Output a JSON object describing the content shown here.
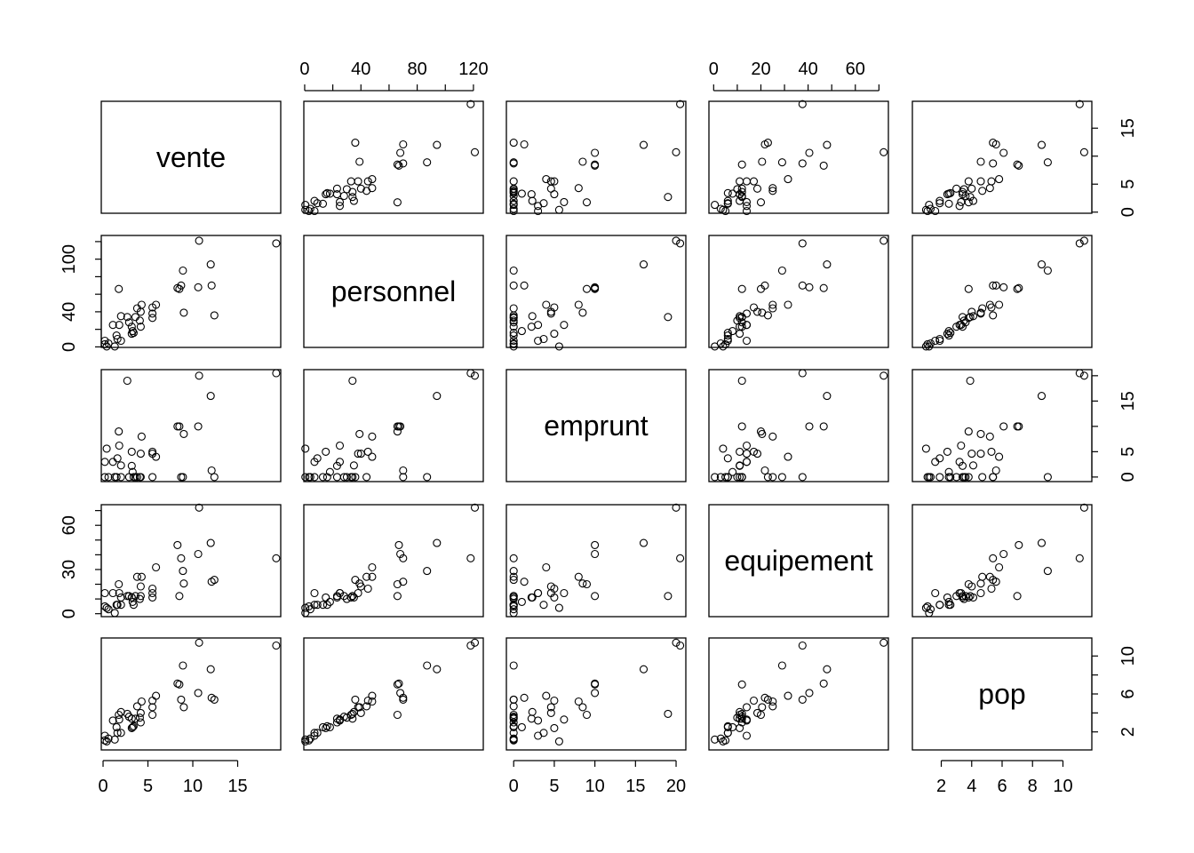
{
  "chart_data": {
    "type": "scatter-matrix",
    "variables": [
      "vente",
      "personnel",
      "emprunt",
      "equipement",
      "pop"
    ],
    "ranges": {
      "vente": [
        -0.2,
        19.8
      ],
      "personnel": [
        -0.6,
        127
      ],
      "emprunt": [
        -0.9,
        21.2
      ],
      "equipement": [
        -2,
        74
      ],
      "pop": [
        0.1,
        11.9
      ]
    },
    "ticks": {
      "vente": {
        "ticks": [
          0,
          5,
          10,
          15
        ],
        "labels_bottom": [
          "0",
          "5",
          "10",
          "15"
        ],
        "labels_right": [
          "0",
          "5",
          "",
          "15"
        ]
      },
      "personnel": {
        "ticks": [
          0,
          20,
          40,
          60,
          80,
          100,
          120
        ],
        "labels_top": [
          "0",
          "",
          "40",
          "",
          "80",
          "",
          "120"
        ],
        "labels_left": [
          "0",
          "",
          "40",
          "",
          "",
          "100",
          ""
        ]
      },
      "emprunt": {
        "ticks": [
          0,
          5,
          10,
          15,
          20
        ],
        "labels_bottom": [
          "0",
          "5",
          "10",
          "15",
          "20"
        ],
        "labels_right": [
          "0",
          "5",
          "",
          "15",
          ""
        ]
      },
      "equipement": {
        "ticks": [
          0,
          10,
          20,
          30,
          40,
          50,
          60,
          70
        ],
        "labels_top": [
          "0",
          "",
          "20",
          "",
          "40",
          "",
          "60",
          ""
        ],
        "labels_left": [
          "0",
          "",
          "",
          "30",
          "",
          "",
          "60",
          ""
        ]
      },
      "pop": {
        "ticks": [
          2,
          4,
          6,
          8,
          10
        ],
        "labels_bottom": [
          "2",
          "4",
          "6",
          "8",
          "10"
        ],
        "labels_right": [
          "2",
          "",
          "6",
          "",
          "10"
        ]
      }
    },
    "observations": [
      [
        19.3,
        118,
        20.5,
        37.6,
        11.1
      ],
      [
        10.7,
        121,
        20,
        72,
        11.4
      ],
      [
        12.0,
        94,
        16,
        48,
        8.6
      ],
      [
        8.9,
        87,
        0,
        29,
        9.0
      ],
      [
        1.75,
        66,
        9,
        20,
        3.8
      ],
      [
        8.3,
        67,
        10,
        46.6,
        7.1
      ],
      [
        8.5,
        66,
        10,
        12,
        7.0
      ],
      [
        8.7,
        70,
        0,
        37.6,
        5.4
      ],
      [
        10.6,
        68,
        10,
        40.5,
        6.1
      ],
      [
        12.1,
        70,
        1.3,
        21.7,
        5.6
      ],
      [
        5.9,
        48,
        4,
        31.5,
        5.8
      ],
      [
        5.5,
        45,
        5,
        17,
        5.3
      ],
      [
        4.3,
        48,
        8,
        25,
        5.2
      ],
      [
        3.8,
        44,
        0,
        25,
        4.7
      ],
      [
        4.2,
        40,
        4.6,
        18.5,
        4.0
      ],
      [
        5.5,
        38,
        4.6,
        14,
        4.6
      ],
      [
        5.5,
        33,
        0,
        11,
        3.8
      ],
      [
        9.0,
        39,
        8.5,
        20.5,
        4.6
      ],
      [
        12.4,
        36,
        0,
        23,
        5.4
      ],
      [
        2.0,
        35,
        2.3,
        11,
        4.1
      ],
      [
        2.7,
        34,
        19,
        12,
        3.9
      ],
      [
        3.6,
        34,
        0,
        12,
        3.4
      ],
      [
        1.1,
        25,
        3,
        14,
        3.2
      ],
      [
        1.8,
        25,
        6.2,
        14,
        3.3
      ],
      [
        3.2,
        23,
        2.2,
        11,
        3.4
      ],
      [
        4.2,
        23,
        0,
        12,
        3.0
      ],
      [
        3.3,
        18,
        1,
        8,
        2.5
      ],
      [
        3.4,
        16,
        0,
        6,
        2.6
      ],
      [
        3.2,
        15,
        5,
        11,
        2.4
      ],
      [
        1.5,
        13,
        0,
        6,
        2.5
      ],
      [
        1.6,
        9,
        3.7,
        6,
        1.9
      ],
      [
        2.0,
        7,
        0,
        6,
        1.9
      ],
      [
        0.2,
        7,
        3,
        14,
        1.6
      ],
      [
        0.2,
        3,
        0,
        5,
        1.1
      ],
      [
        0.4,
        0.5,
        5.6,
        4,
        1.0
      ],
      [
        1.3,
        0.5,
        0,
        0.5,
        1.2
      ],
      [
        2.9,
        28,
        0,
        12,
        3.6
      ],
      [
        0.6,
        4,
        0,
        3,
        1.3
      ],
      [
        4.1,
        30,
        0,
        10,
        3.5
      ]
    ]
  }
}
